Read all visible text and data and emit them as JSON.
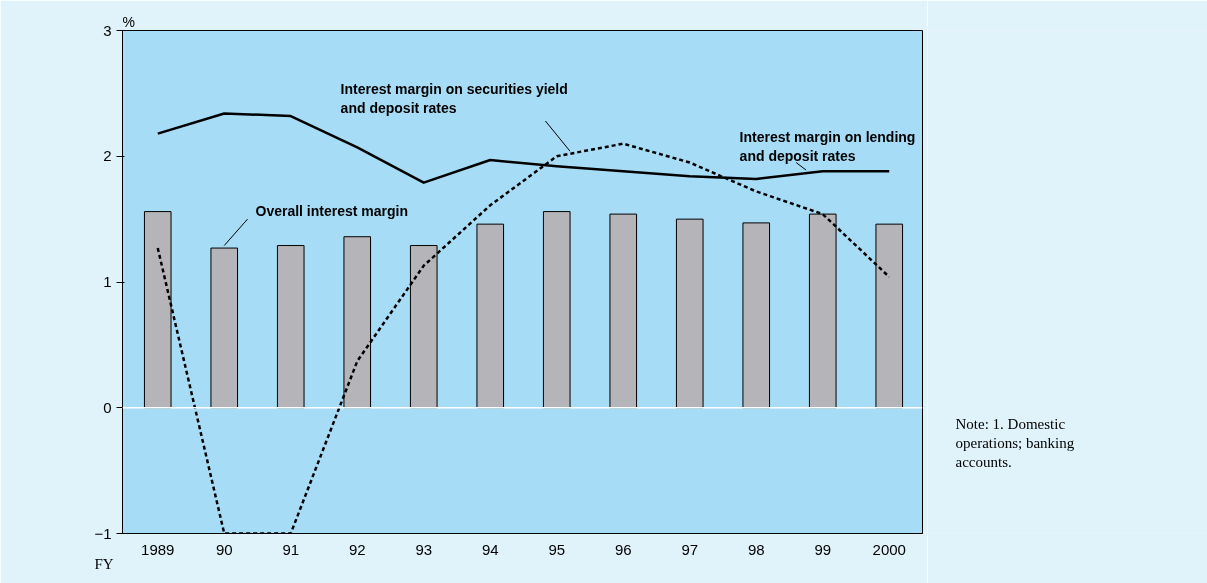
{
  "chart_data": {
    "type": "bar",
    "xlabel": "FY",
    "ylabel": "%",
    "categories": [
      "1989",
      "90",
      "91",
      "92",
      "93",
      "94",
      "95",
      "96",
      "97",
      "98",
      "99",
      "2000"
    ],
    "series": [
      {
        "name": "Overall interest margin",
        "color": "#b5b5b9",
        "values": [
          1.56,
          1.27,
          1.29,
          1.36,
          1.29,
          1.46,
          1.56,
          1.54,
          1.5,
          1.47,
          1.54,
          1.46
        ]
      },
      {
        "name": "Interest margin on lending and deposit rates",
        "type": "line",
        "color": "#000000",
        "line_style": "solid",
        "values": [
          2.18,
          2.34,
          2.32,
          2.07,
          1.79,
          1.97,
          1.92,
          1.88,
          1.84,
          1.82,
          1.88,
          1.88
        ]
      },
      {
        "name": "Interest margin on securities yield and deposit rates",
        "type": "line",
        "color": "#000000",
        "line_style": "dashed",
        "values": [
          1.27,
          -1.0,
          -1.0,
          0.37,
          1.13,
          1.61,
          2.0,
          2.1,
          1.95,
          1.72,
          1.54,
          1.04
        ]
      }
    ],
    "ylim": [
      -1,
      3
    ],
    "yticks": [
      {
        "value": -1,
        "label": "−1"
      },
      0,
      1,
      2,
      3
    ],
    "ref_lines": [
      {
        "axis": "y",
        "value": 0,
        "color": "#ffffff"
      }
    ],
    "grid": false,
    "legend": false,
    "marker": "none",
    "annotations": [
      "Note: 1. Domestic operations; banking accounts."
    ]
  }
}
